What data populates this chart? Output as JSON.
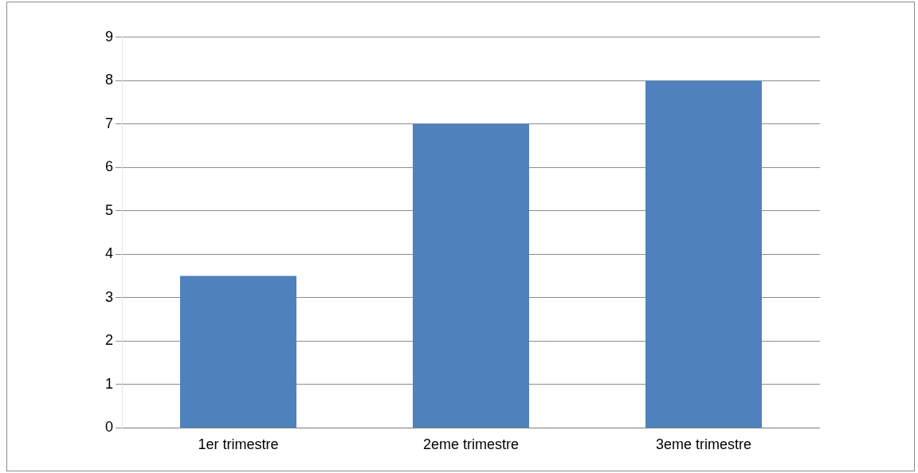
{
  "chart_data": {
    "type": "bar",
    "categories": [
      "1er trimestre",
      "2eme trimestre",
      "3eme trimestre"
    ],
    "values": [
      3.5,
      7,
      8
    ],
    "color": "#4f81bd",
    "ylim": [
      0,
      9
    ],
    "yticks": [
      0,
      1,
      2,
      3,
      4,
      5,
      6,
      7,
      8,
      9
    ],
    "grid": "y",
    "legend": false
  }
}
